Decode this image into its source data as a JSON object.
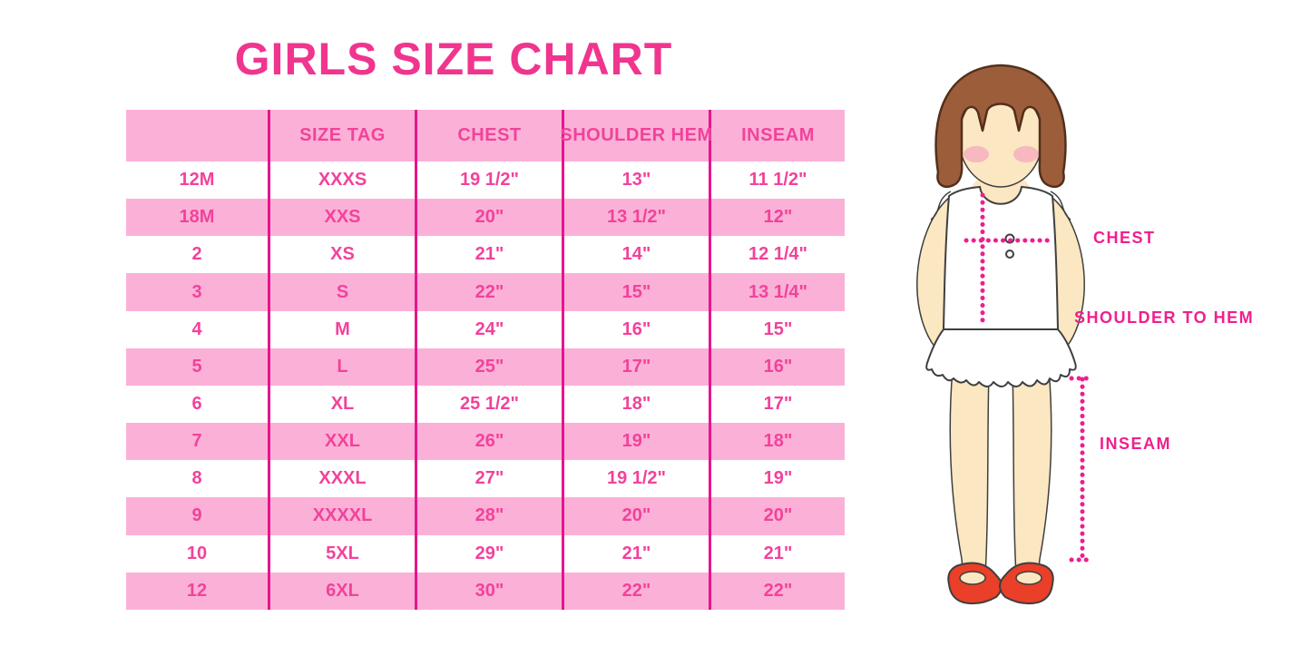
{
  "title": "GIRLS SIZE CHART",
  "chart_data": {
    "type": "table",
    "title": "GIRLS SIZE CHART",
    "columns": [
      "",
      "SIZE TAG",
      "CHEST",
      "SHOULDER HEM",
      "INSEAM"
    ],
    "rows": [
      [
        "12M",
        "XXXS",
        "19 1/2\"",
        "13\"",
        "11 1/2\""
      ],
      [
        "18M",
        "XXS",
        "20\"",
        "13 1/2\"",
        "12\""
      ],
      [
        "2",
        "XS",
        "21\"",
        "14\"",
        "12 1/4\""
      ],
      [
        "3",
        "S",
        "22\"",
        "15\"",
        "13 1/4\""
      ],
      [
        "4",
        "M",
        "24\"",
        "16\"",
        "15\""
      ],
      [
        "5",
        "L",
        "25\"",
        "17\"",
        "16\""
      ],
      [
        "6",
        "XL",
        "25 1/2\"",
        "18\"",
        "17\""
      ],
      [
        "7",
        "XXL",
        "26\"",
        "19\"",
        "18\""
      ],
      [
        "8",
        "XXXL",
        "27\"",
        "19 1/2\"",
        "19\""
      ],
      [
        "9",
        "XXXXL",
        "28\"",
        "20\"",
        "20\""
      ],
      [
        "10",
        "5XL",
        "29\"",
        "21\"",
        "21\""
      ],
      [
        "12",
        "6XL",
        "30\"",
        "22\"",
        "22\""
      ]
    ],
    "row_striping": "white rows alternate with pink rows, header pink"
  },
  "figure_labels": {
    "chest": "CHEST",
    "shoulder_to_hem": "SHOULDER TO HEM",
    "inseam": "INSEAM"
  },
  "colors": {
    "title_pink": "#F0358F",
    "table_text_pink": "#F2429B",
    "row_pink": "#FBB1D7",
    "divider_pink": "#E6158D",
    "label_pink": "#F01F8E",
    "dotted_line_pink": "#EE1E8E",
    "hair_brown": "#9C5D3B",
    "skin": "#FBE7C1",
    "blush": "#F6AFC0",
    "shoe_red": "#EA3F28"
  }
}
